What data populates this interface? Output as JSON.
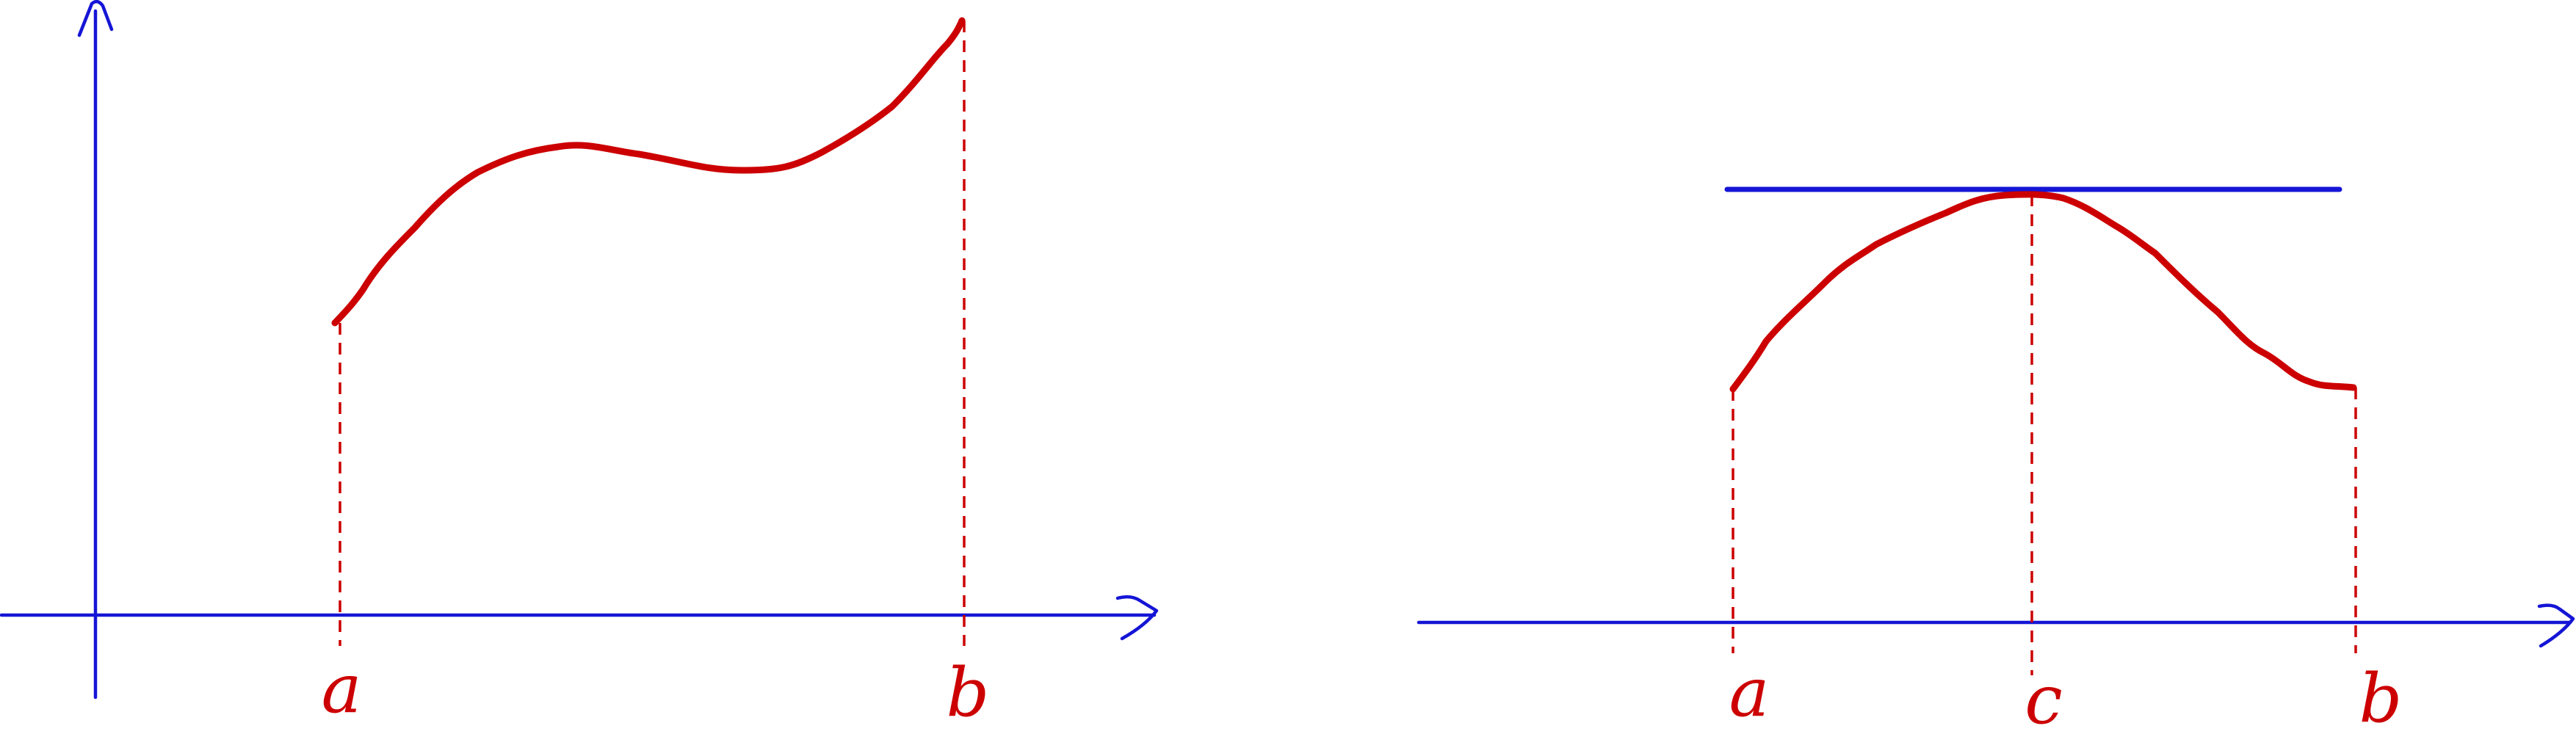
{
  "panels": [
    {
      "id": "left",
      "labels": {
        "a": "a",
        "b": "b"
      }
    },
    {
      "id": "right",
      "labels": {
        "a": "a",
        "c": "c",
        "b": "b"
      }
    }
  ],
  "colors": {
    "axis": "#1515d6",
    "curve": "#cc0000",
    "tangent": "#1515d6",
    "guide": "#cc0000"
  }
}
